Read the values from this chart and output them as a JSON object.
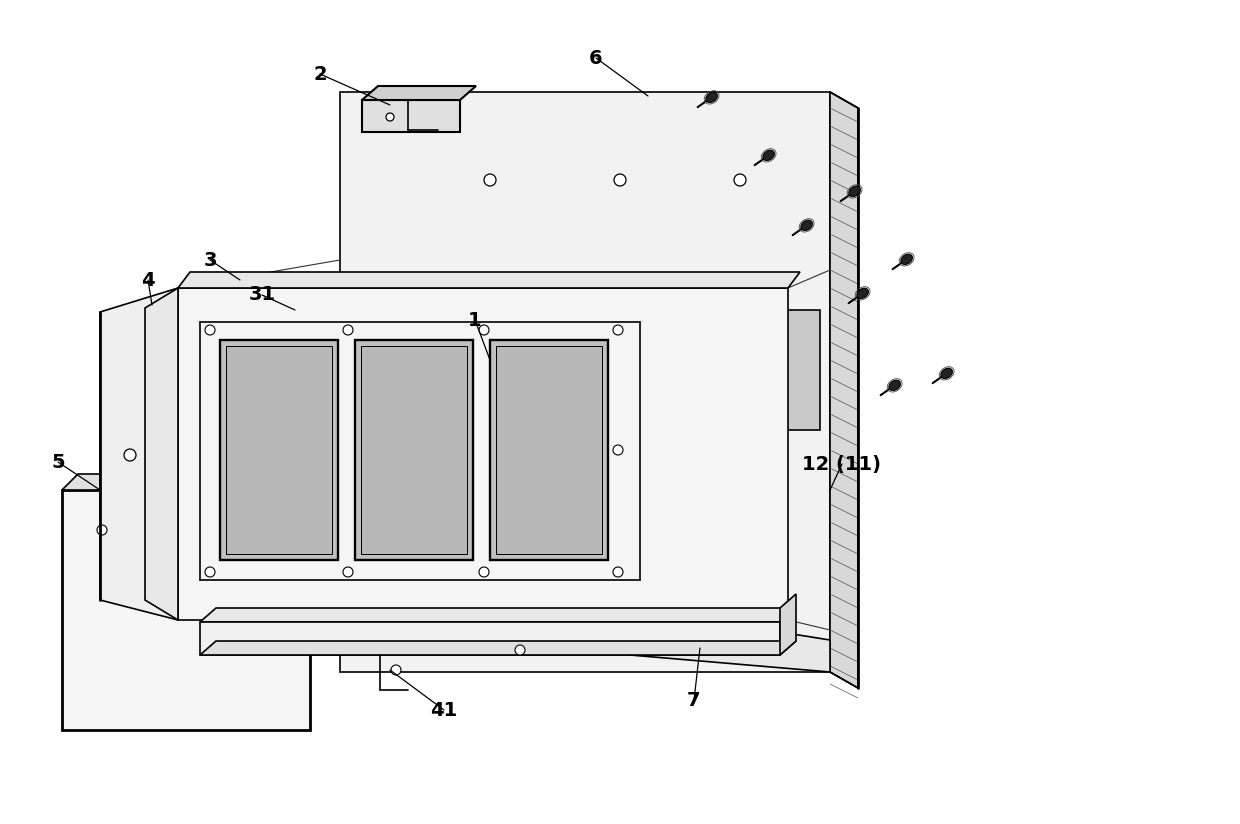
{
  "background_color": "#ffffff",
  "lc": "#000000",
  "lw": 1.2,
  "tlw": 2.0,
  "fig_width": 12.4,
  "fig_height": 8.24,
  "dpi": 100
}
